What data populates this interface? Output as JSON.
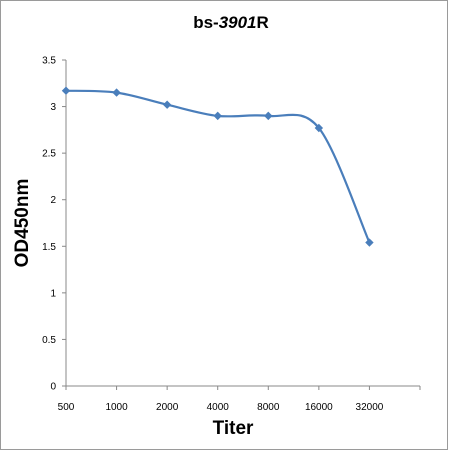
{
  "chart_data": {
    "type": "line",
    "title_prefix": "bs-",
    "title_number": "3901",
    "title_suffix": "R",
    "xlabel": "Titer",
    "ylabel": "OD450nm",
    "categories": [
      "500",
      "1000",
      "2000",
      "4000",
      "8000",
      "16000",
      "32000"
    ],
    "series": [
      {
        "values": [
          3.17,
          3.15,
          3.02,
          2.9,
          2.9,
          2.77,
          1.54
        ]
      }
    ],
    "ylim": [
      0,
      3.5
    ],
    "yticks": [
      "0",
      "0.5",
      "1",
      "1.5",
      "2",
      "2.5",
      "3",
      "3.5"
    ],
    "grid": false,
    "legend": "none",
    "colors": {
      "line": "#4a7ebb",
      "marker": "#4a7ebb",
      "axis": "#888888"
    }
  }
}
